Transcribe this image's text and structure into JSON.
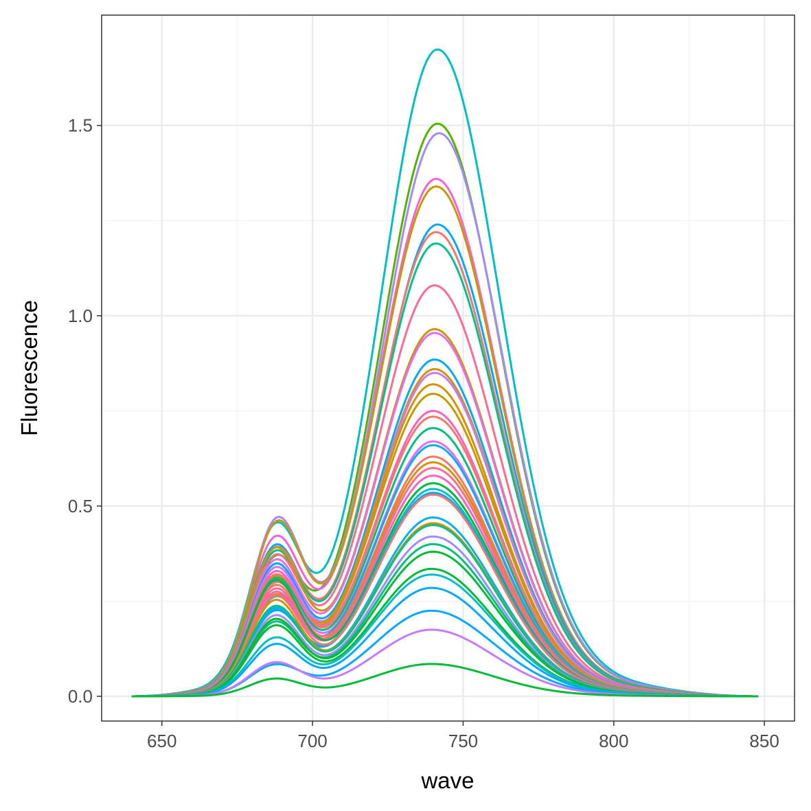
{
  "chart_data": {
    "type": "line",
    "title": "",
    "xlabel": "wave",
    "ylabel": "Fluorescence",
    "xlim": [
      630,
      860
    ],
    "ylim": [
      -0.065,
      1.79
    ],
    "x_ticks": [
      650,
      700,
      750,
      800,
      850
    ],
    "x_tick_labels": [
      "650",
      "700",
      "750",
      "800",
      "850"
    ],
    "y_ticks": [
      0.0,
      0.5,
      1.0,
      1.5
    ],
    "y_tick_labels": [
      "0.0",
      "0.5",
      "1.0",
      "1.5"
    ],
    "grid": true,
    "legend": "none",
    "x_range": [
      640,
      848
    ],
    "series": [
      {
        "color": "#00BFC4",
        "peak": 1.7,
        "peak_x": 741.5,
        "shoulder": 0.5,
        "shoulder_x": 687.5
      },
      {
        "color": "#53B400",
        "peak": 1.505,
        "peak_x": 741.5,
        "shoulder": 0.4,
        "shoulder_x": 687.5
      },
      {
        "color": "#A58AFF",
        "peak": 1.48,
        "peak_x": 742,
        "shoulder": 0.53,
        "shoulder_x": 688
      },
      {
        "color": "#FB61D7",
        "peak": 1.36,
        "peak_x": 741,
        "shoulder": 0.47,
        "shoulder_x": 687.5
      },
      {
        "color": "#C49A00",
        "peak": 1.34,
        "peak_x": 741,
        "shoulder": 0.52,
        "shoulder_x": 688
      },
      {
        "color": "#00A9FF",
        "peak": 1.24,
        "peak_x": 741.5,
        "shoulder": 0.45,
        "shoulder_x": 687.5
      },
      {
        "color": "#F8766D",
        "peak": 1.22,
        "peak_x": 741,
        "shoulder": 0.44,
        "shoulder_x": 687.5
      },
      {
        "color": "#00C08B",
        "peak": 1.19,
        "peak_x": 741,
        "shoulder": 0.43,
        "shoulder_x": 687.5
      },
      {
        "color": "#FF6C91",
        "peak": 1.08,
        "peak_x": 740.5,
        "shoulder": 0.42,
        "shoulder_x": 687.5
      },
      {
        "color": "#C49A00",
        "peak": 0.965,
        "peak_x": 740.5,
        "shoulder": 0.45,
        "shoulder_x": 687.5
      },
      {
        "color": "#E76BF3",
        "peak": 0.955,
        "peak_x": 740.5,
        "shoulder": 0.41,
        "shoulder_x": 687.5
      },
      {
        "color": "#00A9FF",
        "peak": 0.885,
        "peak_x": 740.5,
        "shoulder": 0.4,
        "shoulder_x": 687.5
      },
      {
        "color": "#D89000",
        "peak": 0.86,
        "peak_x": 740.5,
        "shoulder": 0.36,
        "shoulder_x": 687.5
      },
      {
        "color": "#C77CFF",
        "peak": 0.85,
        "peak_x": 740.5,
        "shoulder": 0.39,
        "shoulder_x": 687.5
      },
      {
        "color": "#D89000",
        "peak": 0.82,
        "peak_x": 740,
        "shoulder": 0.35,
        "shoulder_x": 687.5
      },
      {
        "color": "#C49A00",
        "peak": 0.795,
        "peak_x": 740,
        "shoulder": 0.34,
        "shoulder_x": 687.5
      },
      {
        "color": "#FF62BC",
        "peak": 0.75,
        "peak_x": 740,
        "shoulder": 0.38,
        "shoulder_x": 687.5
      },
      {
        "color": "#F8766D",
        "peak": 0.735,
        "peak_x": 740,
        "shoulder": 0.37,
        "shoulder_x": 687.5
      },
      {
        "color": "#00BF7D",
        "peak": 0.705,
        "peak_x": 740,
        "shoulder": 0.36,
        "shoulder_x": 687.5
      },
      {
        "color": "#E76BF3",
        "peak": 0.67,
        "peak_x": 740,
        "shoulder": 0.35,
        "shoulder_x": 687.5
      },
      {
        "color": "#00B0F6",
        "peak": 0.66,
        "peak_x": 740,
        "shoulder": 0.3,
        "shoulder_x": 687.5
      },
      {
        "color": "#F8766D",
        "peak": 0.63,
        "peak_x": 740,
        "shoulder": 0.34,
        "shoulder_x": 687.5
      },
      {
        "color": "#D89000",
        "peak": 0.615,
        "peak_x": 740,
        "shoulder": 0.31,
        "shoulder_x": 687.5
      },
      {
        "color": "#FF6C91",
        "peak": 0.6,
        "peak_x": 740,
        "shoulder": 0.33,
        "shoulder_x": 687.5
      },
      {
        "color": "#FF62BC",
        "peak": 0.58,
        "peak_x": 740,
        "shoulder": 0.32,
        "shoulder_x": 687.5
      },
      {
        "color": "#00BA38",
        "peak": 0.56,
        "peak_x": 740,
        "shoulder": 0.36,
        "shoulder_x": 687.5
      },
      {
        "color": "#00BFC4",
        "peak": 0.545,
        "peak_x": 740,
        "shoulder": 0.27,
        "shoulder_x": 687.5
      },
      {
        "color": "#00A9FF",
        "peak": 0.535,
        "peak_x": 740,
        "shoulder": 0.26,
        "shoulder_x": 687.5
      },
      {
        "color": "#F8766D",
        "peak": 0.53,
        "peak_x": 740,
        "shoulder": 0.31,
        "shoulder_x": 687.5
      },
      {
        "color": "#00B0F6",
        "peak": 0.47,
        "peak_x": 740,
        "shoulder": 0.27,
        "shoulder_x": 687.5
      },
      {
        "color": "#D89000",
        "peak": 0.455,
        "peak_x": 740,
        "shoulder": 0.3,
        "shoulder_x": 687.5
      },
      {
        "color": "#00C08B",
        "peak": 0.45,
        "peak_x": 740,
        "shoulder": 0.28,
        "shoulder_x": 687.5
      },
      {
        "color": "#A58AFF",
        "peak": 0.42,
        "peak_x": 740,
        "shoulder": 0.25,
        "shoulder_x": 687.5
      },
      {
        "color": "#00BF7D",
        "peak": 0.4,
        "peak_x": 740,
        "shoulder": 0.23,
        "shoulder_x": 687.5
      },
      {
        "color": "#00BA38",
        "peak": 0.38,
        "peak_x": 740,
        "shoulder": 0.24,
        "shoulder_x": 687.5
      },
      {
        "color": "#00BA38",
        "peak": 0.335,
        "peak_x": 739.5,
        "shoulder": 0.22,
        "shoulder_x": 687.5
      },
      {
        "color": "#00BFC4",
        "peak": 0.32,
        "peak_x": 739.5,
        "shoulder": 0.18,
        "shoulder_x": 687.5
      },
      {
        "color": "#00A9FF",
        "peak": 0.285,
        "peak_x": 739.5,
        "shoulder": 0.16,
        "shoulder_x": 687.5
      },
      {
        "color": "#00A9FF",
        "peak": 0.225,
        "peak_x": 739.5,
        "shoulder": 0.095,
        "shoulder_x": 687.5
      },
      {
        "color": "#C77CFF",
        "peak": 0.175,
        "peak_x": 739.5,
        "shoulder": 0.105,
        "shoulder_x": 687.5
      },
      {
        "color": "#00BA38",
        "peak": 0.085,
        "peak_x": 739.5,
        "shoulder": 0.055,
        "shoulder_x": 687.5
      }
    ]
  }
}
